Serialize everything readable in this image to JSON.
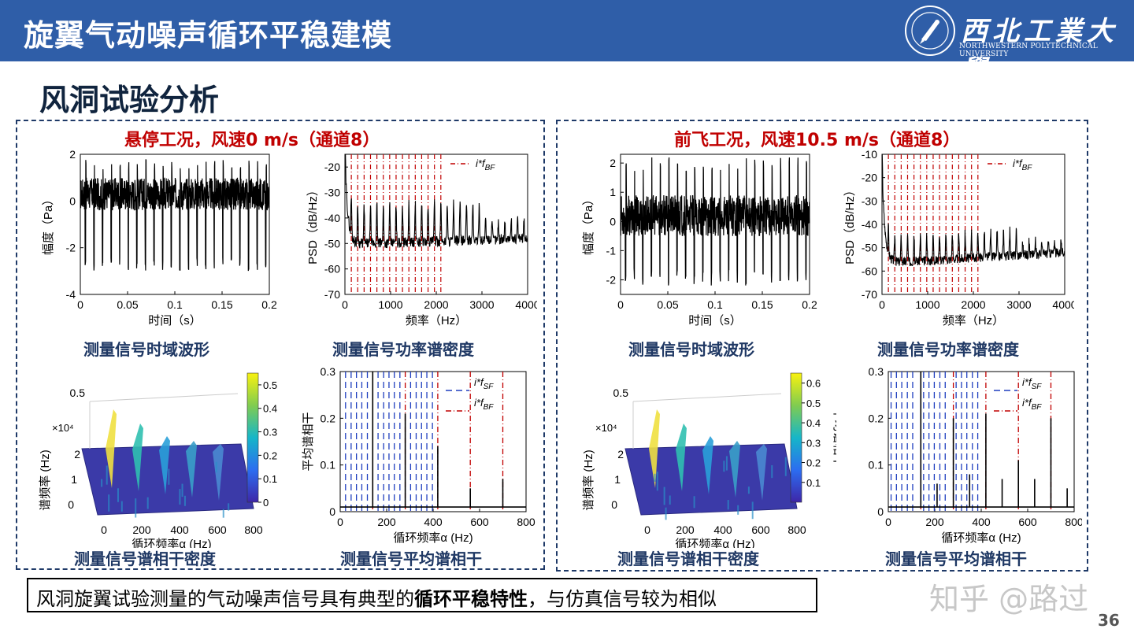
{
  "header": {
    "title": "旋翼气动噪声循环平稳建模",
    "university_cn": "西北工業大學",
    "university_en": "NORTHWESTERN POLYTECHNICAL UNIVERSITY"
  },
  "subtitle": "风洞试验分析",
  "panels": [
    {
      "title": "悬停工况，风速0 m/s（通道8）",
      "captions": [
        "测量信号时域波形",
        "测量信号功率谱密度",
        "测量信号谱相干密度",
        "测量信号平均谱相干"
      ]
    },
    {
      "title": "前飞工况，风速10.5 m/s（通道8）",
      "captions": [
        "测量信号时域波形",
        "测量信号功率谱密度",
        "测量信号谱相干密度",
        "测量信号平均谱相干"
      ]
    }
  ],
  "conclusion": {
    "before": "风洞旋翼试验测量的气动噪声信号具有典型的",
    "bold": "循环平稳特性",
    "after": "，与仿真信号较为相似"
  },
  "watermark": "知乎 @路过",
  "page_number": "36",
  "colors": {
    "header_bg": "#2f5ea8",
    "title_red": "#c00000",
    "caption_blue": "#1f3864",
    "bf_line": "#c00000",
    "sf_line": "#1f3fbf"
  },
  "chart_data": [
    {
      "id": "hover_time",
      "type": "line",
      "xlabel": "时间（s）",
      "ylabel": "幅度（Pa）",
      "xlim": [
        0,
        0.2
      ],
      "ylim": [
        -4,
        2
      ],
      "xticks": [
        "0",
        "0.05",
        "0.1",
        "0.15",
        "0.2"
      ],
      "yticks": [
        "-4",
        "-2",
        "0",
        "2"
      ],
      "signal": {
        "pulses": 22,
        "baseline": 0.3,
        "peak_low": -3.0,
        "peak_high": 1.8
      }
    },
    {
      "id": "hover_psd",
      "type": "line",
      "xlabel": "频率（Hz）",
      "ylabel": "PSD（dB/Hz）",
      "xlim": [
        0,
        4000
      ],
      "ylim": [
        -70,
        -15
      ],
      "xticks": [
        "0",
        "1000",
        "2000",
        "3000",
        "4000"
      ],
      "yticks": [
        "-70",
        "-60",
        "-50",
        "-40",
        "-30",
        "-20"
      ],
      "legend": "i*f_BF",
      "bf_harmonic_hz": 140,
      "bf_line_count": 15,
      "signal": {
        "start": -15,
        "floor": -50,
        "peaks_to": -35,
        "end": -48
      }
    },
    {
      "id": "hover_scd",
      "type": "heatmap",
      "xlabel": "循环频率α (Hz)",
      "ylabel": "谱频率 (Hz)",
      "xticks": [
        "0",
        "200",
        "400",
        "600",
        "800"
      ],
      "yticks": [
        "0",
        "1",
        "2"
      ],
      "yexp": "×10⁴",
      "zticks": [
        "0.5"
      ],
      "colorbar_ticks": [
        "0",
        "0.1",
        "0.2",
        "0.3",
        "0.4",
        "0.5"
      ],
      "colorbar_max": 0.55
    },
    {
      "id": "hover_asc",
      "type": "line",
      "xlabel": "循环频率α (Hz)",
      "ylabel": "平均谱相干",
      "xlim": [
        0,
        800
      ],
      "ylim": [
        0,
        0.3
      ],
      "xticks": [
        "0",
        "200",
        "400",
        "600",
        "800"
      ],
      "yticks": [
        "0",
        "0.1",
        "0.2",
        "0.3"
      ],
      "legend": [
        "i*f_SF",
        "i*f_BF"
      ],
      "sf_lines_hz": [
        23,
        47,
        70,
        93,
        117,
        163,
        187,
        210,
        233,
        257,
        303,
        327,
        350,
        373,
        397
      ],
      "bf_lines_hz": [
        140,
        280,
        420,
        560,
        700
      ],
      "peaks": [
        [
          140,
          0.3
        ],
        [
          280,
          0.21
        ],
        [
          420,
          0.14
        ],
        [
          560,
          0.05
        ],
        [
          700,
          0.07
        ]
      ]
    },
    {
      "id": "forward_time",
      "type": "line",
      "xlabel": "时间（s）",
      "ylabel": "幅度（Pa）",
      "xlim": [
        0,
        0.2
      ],
      "ylim": [
        -2.5,
        2.3
      ],
      "xticks": [
        "0",
        "0.05",
        "0.1",
        "0.15",
        "0.2"
      ],
      "yticks": [
        "-2",
        "-1",
        "0",
        "1",
        "2"
      ],
      "signal": {
        "pulses": 22,
        "baseline": 0.2,
        "peak_low": -2.2,
        "peak_high": 2.2
      }
    },
    {
      "id": "forward_psd",
      "type": "line",
      "xlabel": "频率（Hz）",
      "ylabel": "PSD（dB/Hz）",
      "xlim": [
        0,
        4000
      ],
      "ylim": [
        -70,
        -10
      ],
      "xticks": [
        "0",
        "1000",
        "2000",
        "3000",
        "4000"
      ],
      "yticks": [
        "-70",
        "-60",
        "-50",
        "-40",
        "-30",
        "-20",
        "-10"
      ],
      "legend": "i*f_BF",
      "bf_harmonic_hz": 140,
      "bf_line_count": 15,
      "signal": {
        "start": -15,
        "floor": -56,
        "peaks_to": -45,
        "end": -52
      }
    },
    {
      "id": "forward_scd",
      "type": "heatmap",
      "xlabel": "循环频率α (Hz)",
      "ylabel": "谱频率 (Hz)",
      "xticks": [
        "0",
        "200",
        "400",
        "600",
        "800"
      ],
      "yticks": [
        "0",
        "1",
        "2"
      ],
      "yexp": "×10⁴",
      "zticks": [
        "0.5"
      ],
      "colorbar_ticks": [
        "0.1",
        "0.2",
        "0.3",
        "0.4",
        "0.5",
        "0.6"
      ],
      "colorbar_max": 0.65,
      "colorbar_label": "平均谱相干"
    },
    {
      "id": "forward_asc",
      "type": "line",
      "xlabel": "循环频率α (Hz)",
      "ylabel": "",
      "xlim": [
        0,
        800
      ],
      "ylim": [
        0,
        0.3
      ],
      "xticks": [
        "0",
        "200",
        "400",
        "600",
        "800"
      ],
      "yticks": [
        "0",
        "0.1",
        "0.2",
        "0.3"
      ],
      "legend": [
        "i*f_SF",
        "i*f_BF"
      ],
      "sf_lines_hz": [
        12,
        35,
        58,
        82,
        105,
        152,
        175,
        198,
        222,
        245,
        292,
        315,
        338,
        362,
        385
      ],
      "bf_lines_hz": [
        140,
        280,
        420,
        560,
        700
      ],
      "peaks": [
        [
          140,
          0.3
        ],
        [
          280,
          0.2
        ],
        [
          420,
          0.21
        ],
        [
          560,
          0.11
        ],
        [
          700,
          0.2
        ],
        [
          210,
          0.06
        ],
        [
          350,
          0.08
        ],
        [
          490,
          0.07
        ],
        [
          630,
          0.07
        ],
        [
          770,
          0.05
        ]
      ]
    }
  ]
}
